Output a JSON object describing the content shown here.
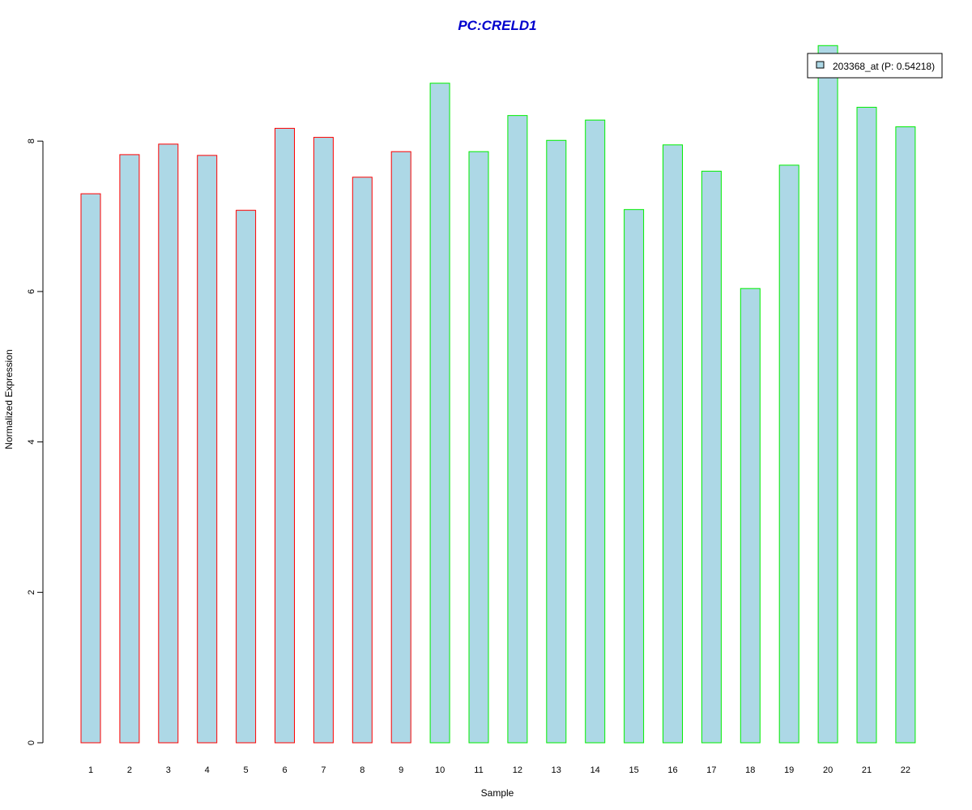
{
  "chart_data": {
    "type": "bar",
    "title": "PC:CRELD1",
    "xlabel": "Sample",
    "ylabel": "Normalized Expression",
    "categories": [
      "1",
      "2",
      "3",
      "4",
      "5",
      "6",
      "7",
      "8",
      "9",
      "10",
      "11",
      "12",
      "13",
      "14",
      "15",
      "16",
      "17",
      "18",
      "19",
      "20",
      "21",
      "22"
    ],
    "series": [
      {
        "name": "203368_at (P: 0.54218)",
        "values": [
          7.3,
          7.82,
          7.96,
          7.81,
          7.08,
          8.17,
          8.05,
          7.52,
          7.86,
          8.77,
          7.86,
          8.34,
          8.01,
          8.28,
          7.09,
          7.95,
          7.6,
          6.04,
          7.68,
          9.27,
          8.45,
          8.19
        ]
      }
    ],
    "group_borders": [
      "#ff0000",
      "#ff0000",
      "#ff0000",
      "#ff0000",
      "#ff0000",
      "#ff0000",
      "#ff0000",
      "#ff0000",
      "#ff0000",
      "#00ee00",
      "#00ee00",
      "#00ee00",
      "#00ee00",
      "#00ee00",
      "#00ee00",
      "#00ee00",
      "#00ee00",
      "#00ee00",
      "#00ee00",
      "#00ee00",
      "#00ee00",
      "#00ee00"
    ],
    "bar_fill": "#add8e6",
    "title_color": "#0000cd",
    "yticks": [
      0,
      2,
      4,
      6,
      8
    ],
    "ylim": [
      0,
      9.27
    ],
    "grid": false,
    "legend_position": "top-right"
  }
}
